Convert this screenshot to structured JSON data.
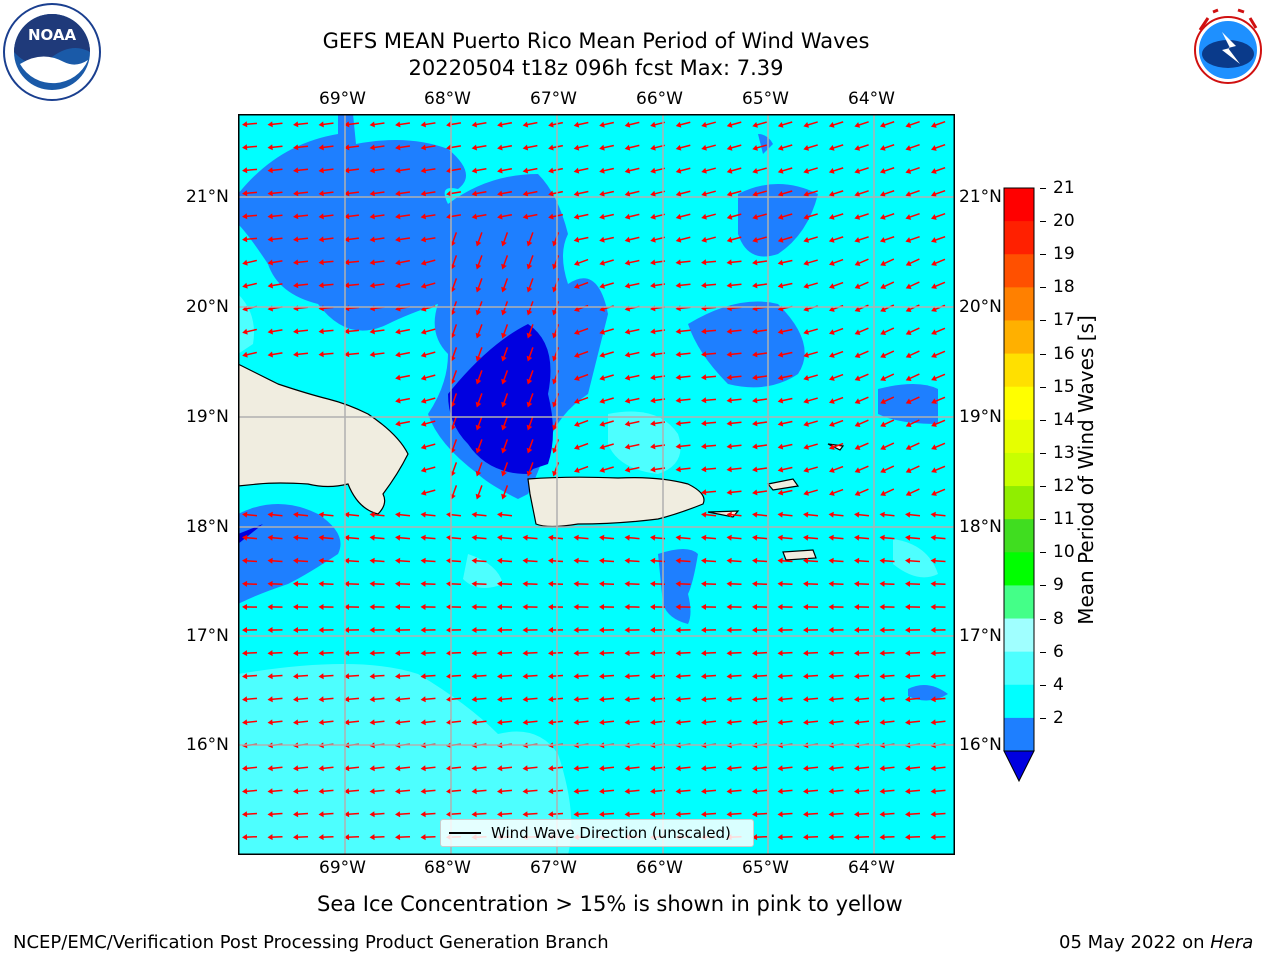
{
  "header": {
    "title": "GEFS MEAN Puerto Rico Mean Period of Wind Waves",
    "subtitle": "20220504 t18z 096h fcst   Max: 7.39"
  },
  "logos": {
    "left": {
      "icon": "noaa-logo-icon",
      "text": "NOAA",
      "ring_text": "NATIONAL OCEANIC AND ATMOSPHERIC ADMINISTRATION · U.S. DEPARTMENT OF COMMERCE"
    },
    "right": {
      "icon": "nws-logo-icon",
      "ring_text": "NATIONAL WEATHER SERVICE"
    }
  },
  "map": {
    "lon_ticks": [
      "69°W",
      "68°W",
      "67°W",
      "66°W",
      "65°W",
      "64°W"
    ],
    "lat_ticks": [
      "21°N",
      "20°N",
      "19°N",
      "18°N",
      "17°N",
      "16°N"
    ],
    "legend_label": "Wind Wave Direction (unscaled)",
    "colors": {
      "ocean": "#00ffff",
      "light_cyan": "#4dffff",
      "band_2_4": "#1e7fff",
      "band_below_2": "#0000e0",
      "land": "#f0ede0",
      "arrow": "#ff0000",
      "grid": "#b0b0b0"
    }
  },
  "colorbar": {
    "label": "Mean Period of Wind Waves [s]",
    "ticks": [
      "21",
      "20",
      "19",
      "18",
      "17",
      "16",
      "15",
      "14",
      "13",
      "12",
      "11",
      "10",
      "9",
      "8",
      "6",
      "4",
      "2"
    ],
    "colors": [
      "#ff0000",
      "#ff2000",
      "#ff5000",
      "#ff8000",
      "#ffb000",
      "#ffe000",
      "#ffff00",
      "#e6ff00",
      "#c8ff00",
      "#90ee00",
      "#40dd20",
      "#00ff00",
      "#44ff88",
      "#a0ffff",
      "#4dffff",
      "#00ffff",
      "#1e7fff",
      "#0000e0"
    ]
  },
  "caption": "Sea Ice Concentration > 15% is shown in pink to yellow",
  "footer": {
    "left": "NCEP/EMC/Verification Post Processing Product Generation Branch",
    "right_date": "05 May 2022 on ",
    "right_host": "Hera"
  }
}
